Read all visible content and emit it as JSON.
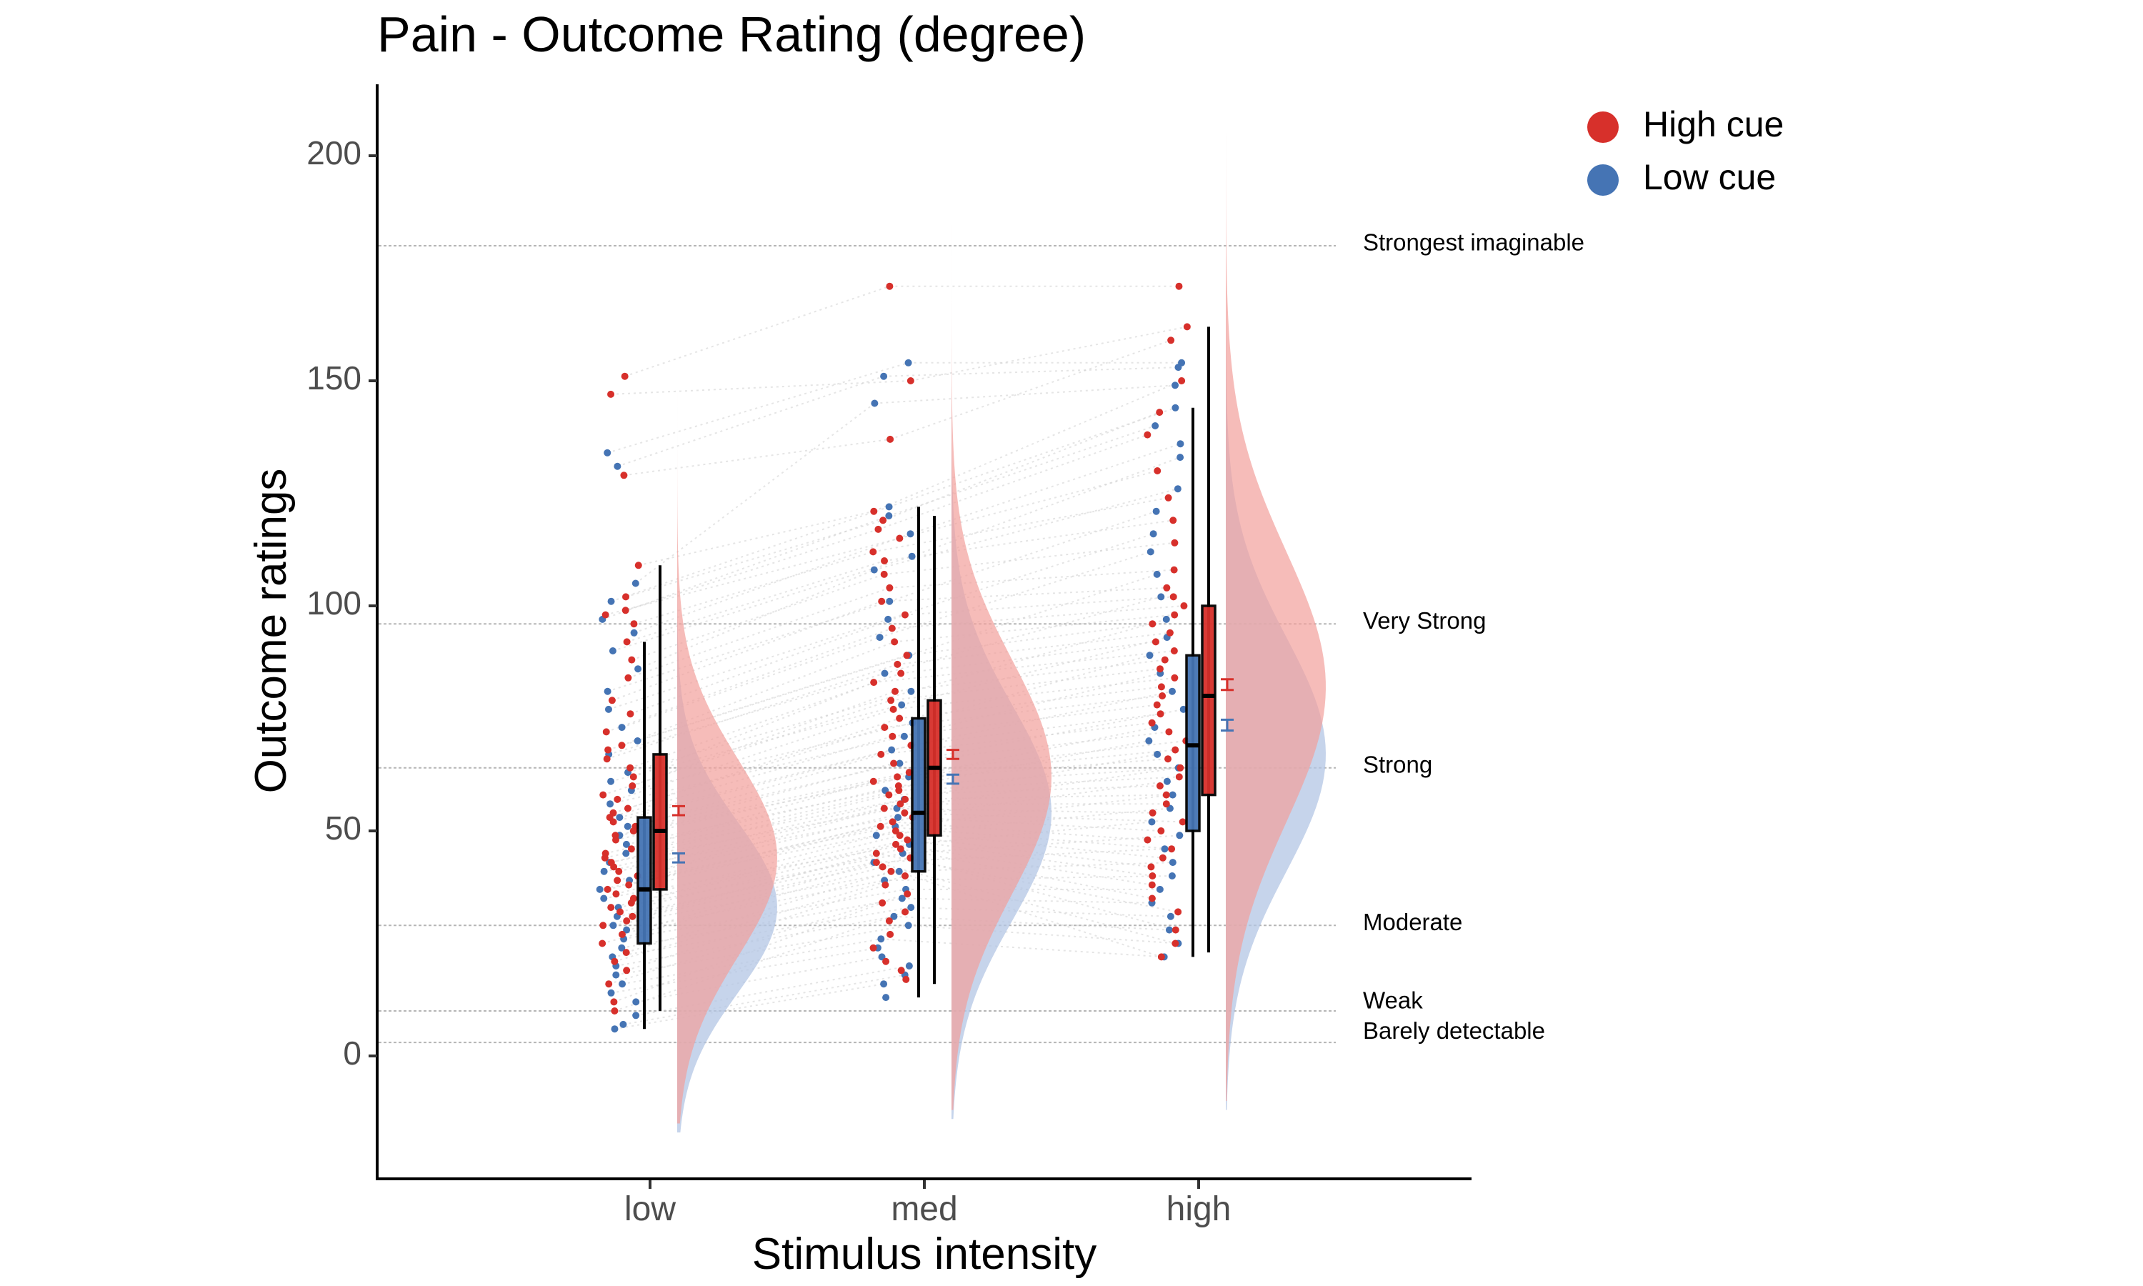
{
  "chart_data": {
    "type": "raincloud",
    "title": "Pain - Outcome Rating (degree)",
    "xlabel": "Stimulus intensity",
    "ylabel": "Outcome ratings",
    "categories": [
      "low",
      "med",
      "high"
    ],
    "ylim": [
      -27,
      216
    ],
    "yticks": [
      0,
      50,
      100,
      150,
      200
    ],
    "grid": false,
    "legend_position": "top-right",
    "reference_lines": [
      {
        "label": "Strongest imaginable",
        "value": 180
      },
      {
        "label": "Very Strong",
        "value": 96
      },
      {
        "label": "Strong",
        "value": 64
      },
      {
        "label": "Moderate",
        "value": 29
      },
      {
        "label": "Weak",
        "value": 10
      },
      {
        "label": "Barely detectable",
        "value": 3
      }
    ],
    "series": [
      {
        "name": "High cue",
        "color": "#d7302b",
        "fill": "#f2a09b",
        "box": [
          {
            "category": "low",
            "whisker_low": 10,
            "q1": 37,
            "median": 50,
            "q3": 67,
            "whisker_high": 109
          },
          {
            "category": "med",
            "whisker_low": 16,
            "q1": 49,
            "median": 64,
            "q3": 79,
            "whisker_high": 120
          },
          {
            "category": "high",
            "whisker_low": 23,
            "q1": 58,
            "median": 80,
            "q3": 100,
            "whisker_high": 162
          }
        ],
        "mean": [
          {
            "category": "low",
            "value": 54.5,
            "se": 1.0
          },
          {
            "category": "med",
            "value": 67.0,
            "se": 1.0
          },
          {
            "category": "high",
            "value": 82.5,
            "se": 1.2
          }
        ],
        "density": [
          {
            "category": "low",
            "mode": 44,
            "sd": 22,
            "min": -15,
            "max": 176
          },
          {
            "category": "med",
            "mode": 62,
            "sd": 26,
            "min": -12,
            "max": 195
          },
          {
            "category": "high",
            "mode": 82,
            "sd": 30,
            "min": -10,
            "max": 205
          }
        ],
        "points": {
          "low": [
            151,
            147,
            129,
            109,
            102,
            99,
            98,
            96,
            92,
            88,
            84,
            79,
            76,
            72,
            69,
            68,
            66,
            64,
            62,
            60,
            58,
            57,
            55,
            54,
            53,
            52,
            51,
            50,
            49,
            48,
            46,
            45,
            44,
            43,
            42,
            41,
            40,
            39,
            38,
            37,
            36,
            35,
            34,
            33,
            32,
            31,
            30,
            29,
            27,
            25,
            23,
            21,
            19,
            16,
            12,
            10
          ],
          "med": [
            171,
            150,
            137,
            121,
            119,
            117,
            115,
            112,
            110,
            107,
            104,
            101,
            98,
            95,
            92,
            89,
            87,
            85,
            83,
            81,
            79,
            77,
            75,
            73,
            71,
            69,
            67,
            65,
            63,
            62,
            61,
            60,
            59,
            58,
            57,
            56,
            55,
            54,
            53,
            52,
            51,
            50,
            49,
            48,
            47,
            46,
            45,
            44,
            43,
            42,
            41,
            40,
            38,
            36,
            34,
            32,
            30,
            27,
            24,
            21,
            19,
            17
          ],
          "high": [
            171,
            162,
            159,
            150,
            143,
            138,
            130,
            124,
            119,
            114,
            108,
            104,
            102,
            100,
            98,
            96,
            94,
            92,
            90,
            88,
            86,
            84,
            82,
            80,
            78,
            76,
            74,
            72,
            70,
            68,
            66,
            64,
            62,
            60,
            58,
            56,
            54,
            52,
            50,
            48,
            46,
            44,
            42,
            40,
            38,
            35,
            32,
            28,
            25,
            22
          ]
        }
      },
      {
        "name": "Low cue",
        "color": "#4574b4",
        "fill": "#b3c6e4",
        "box": [
          {
            "category": "low",
            "whisker_low": 6,
            "q1": 25,
            "median": 37,
            "q3": 53,
            "whisker_high": 92
          },
          {
            "category": "med",
            "whisker_low": 13,
            "q1": 41,
            "median": 54,
            "q3": 75,
            "whisker_high": 122
          },
          {
            "category": "high",
            "whisker_low": 22,
            "q1": 50,
            "median": 69,
            "q3": 89,
            "whisker_high": 144
          }
        ],
        "mean": [
          {
            "category": "low",
            "value": 44.0,
            "se": 1.0
          },
          {
            "category": "med",
            "value": 61.5,
            "se": 1.0
          },
          {
            "category": "high",
            "value": 73.5,
            "se": 1.2
          }
        ],
        "density": [
          {
            "category": "low",
            "mode": 33,
            "sd": 19,
            "min": -17,
            "max": 160
          },
          {
            "category": "med",
            "mode": 54,
            "sd": 24,
            "min": -14,
            "max": 180
          },
          {
            "category": "high",
            "mode": 67,
            "sd": 26,
            "min": -12,
            "max": 195
          }
        ],
        "points": {
          "low": [
            134,
            131,
            105,
            101,
            97,
            94,
            90,
            86,
            81,
            77,
            73,
            70,
            67,
            63,
            61,
            59,
            56,
            53,
            51,
            49,
            47,
            45,
            43,
            41,
            39,
            37,
            35,
            33,
            31,
            29,
            28,
            26,
            24,
            22,
            20,
            18,
            16,
            14,
            12,
            9,
            7,
            6
          ],
          "med": [
            154,
            151,
            145,
            122,
            120,
            116,
            111,
            108,
            101,
            97,
            93,
            89,
            85,
            81,
            78,
            74,
            71,
            68,
            65,
            62,
            59,
            57,
            55,
            53,
            51,
            49,
            47,
            45,
            43,
            41,
            39,
            37,
            35,
            33,
            31,
            29,
            26,
            24,
            22,
            20,
            18,
            16,
            13
          ],
          "high": [
            154,
            153,
            149,
            144,
            140,
            136,
            133,
            126,
            121,
            116,
            112,
            107,
            102,
            97,
            93,
            89,
            85,
            81,
            77,
            73,
            70,
            67,
            64,
            61,
            58,
            55,
            52,
            49,
            46,
            43,
            40,
            37,
            34,
            31,
            28,
            25,
            22
          ]
        }
      }
    ]
  }
}
